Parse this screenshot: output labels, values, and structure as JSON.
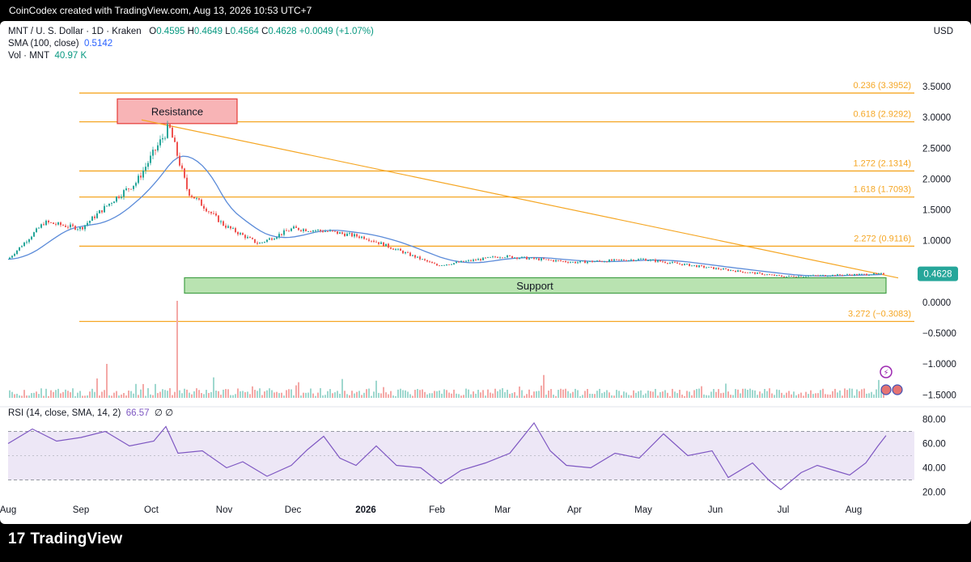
{
  "topbar": {
    "attribution": "CoinCodex created with TradingView.com, Aug 13, 2026 10:53 UTC+7"
  },
  "legend": {
    "symbol": "MNT / U. S. Dollar · 1D · Kraken",
    "open_label": "O",
    "open": "0.4595",
    "high_label": "H",
    "high": "0.4649",
    "low_label": "L",
    "low": "0.4564",
    "close_label": "C",
    "close": "0.4628",
    "change": "+0.0049 (+1.07%)",
    "sma_label": "SMA (100, close)",
    "sma_value": "0.5142",
    "vol_label": "Vol · MNT",
    "vol_value": "40.97 K"
  },
  "rsi_legend": {
    "label": "RSI (14, close, SMA, 14, 2)",
    "value": "66.57",
    "icons": "∅   ∅"
  },
  "currency": "USD",
  "brand": {
    "logo": "17",
    "name": "TradingView"
  },
  "colors": {
    "up": "#26a69a",
    "down": "#ef5350",
    "sma": "#5b8bd9",
    "fib": "#f5a623",
    "rsi": "#7e57c2",
    "rsi_band": "#ede7f6",
    "resistance_fill": "#f8b4b6",
    "resistance_border": "#e53935",
    "support_fill": "#b9e3b1",
    "support_border": "#43a047",
    "price_badge": "#26a69a"
  },
  "chart_data": {
    "type": "candlestick",
    "symbol": "MNT / U. S. Dollar",
    "interval": "1D",
    "exchange": "Kraken",
    "x_ticks": [
      "Aug",
      "Sep",
      "Oct",
      "Nov",
      "Dec",
      "2026",
      "Feb",
      "Mar",
      "Apr",
      "May",
      "Jun",
      "Jul",
      "Aug"
    ],
    "price_axis": {
      "ticks": [
        "3.5000",
        "3.0000",
        "2.5000",
        "2.0000",
        "1.5000",
        "1.0000",
        "0.5000",
        "0.0000",
        "−0.5000",
        "−1.0000",
        "−1.5000"
      ],
      "range": [
        -1.6,
        3.75
      ],
      "current_price": "0.4628"
    },
    "price_series": [
      {
        "month": "Aug",
        "close": 0.7
      },
      {
        "month": "mid-Aug",
        "close": 1.3
      },
      {
        "month": "Sep",
        "close": 1.2
      },
      {
        "month": "mid-Sep",
        "close": 1.7
      },
      {
        "month": "late-Sep",
        "close": 1.95
      },
      {
        "month": "Oct",
        "close": 2.85
      },
      {
        "month": "mid-Oct",
        "close": 1.8
      },
      {
        "month": "Nov",
        "close": 1.25
      },
      {
        "month": "mid-Nov",
        "close": 0.95
      },
      {
        "month": "Dec",
        "close": 1.2
      },
      {
        "month": "mid-Dec",
        "close": 1.15
      },
      {
        "month": "2026",
        "close": 1.05
      },
      {
        "month": "Feb",
        "close": 0.6
      },
      {
        "month": "Mar",
        "close": 0.75
      },
      {
        "month": "Apr",
        "close": 0.65
      },
      {
        "month": "May",
        "close": 0.7
      },
      {
        "month": "Jun",
        "close": 0.55
      },
      {
        "month": "Jul",
        "close": 0.42
      },
      {
        "month": "Aug",
        "close": 0.4628
      }
    ],
    "sma_100": {
      "name": "SMA (100, close)",
      "last": 0.5142
    },
    "fib_levels": [
      {
        "label": "0.236 (3.3952)",
        "value": 3.3952
      },
      {
        "label": "0.618 (2.9292)",
        "value": 2.9292
      },
      {
        "label": "1.272 (2.1314)",
        "value": 2.1314
      },
      {
        "label": "1.618 (1.7093)",
        "value": 1.7093
      },
      {
        "label": "2.272 (0.9116)",
        "value": 0.9116
      },
      {
        "label": "3.272 (−0.3083)",
        "value": -0.3083
      }
    ],
    "zones": [
      {
        "label": "Resistance",
        "top": 3.3,
        "bottom": 2.9
      },
      {
        "label": "Support",
        "top": 0.4,
        "bottom": 0.15
      }
    ],
    "trendline": {
      "from": {
        "date": "late-Sep",
        "price": 2.96
      },
      "to": {
        "date": "Aug",
        "price": 0.45
      }
    },
    "rsi": {
      "label": "RSI (14, close, SMA, 14, 2)",
      "last": 66.57,
      "ticks": [
        "80.00",
        "60.00",
        "40.00",
        "20.00"
      ],
      "range": [
        15,
        85
      ],
      "bands": [
        30,
        70
      ]
    }
  }
}
